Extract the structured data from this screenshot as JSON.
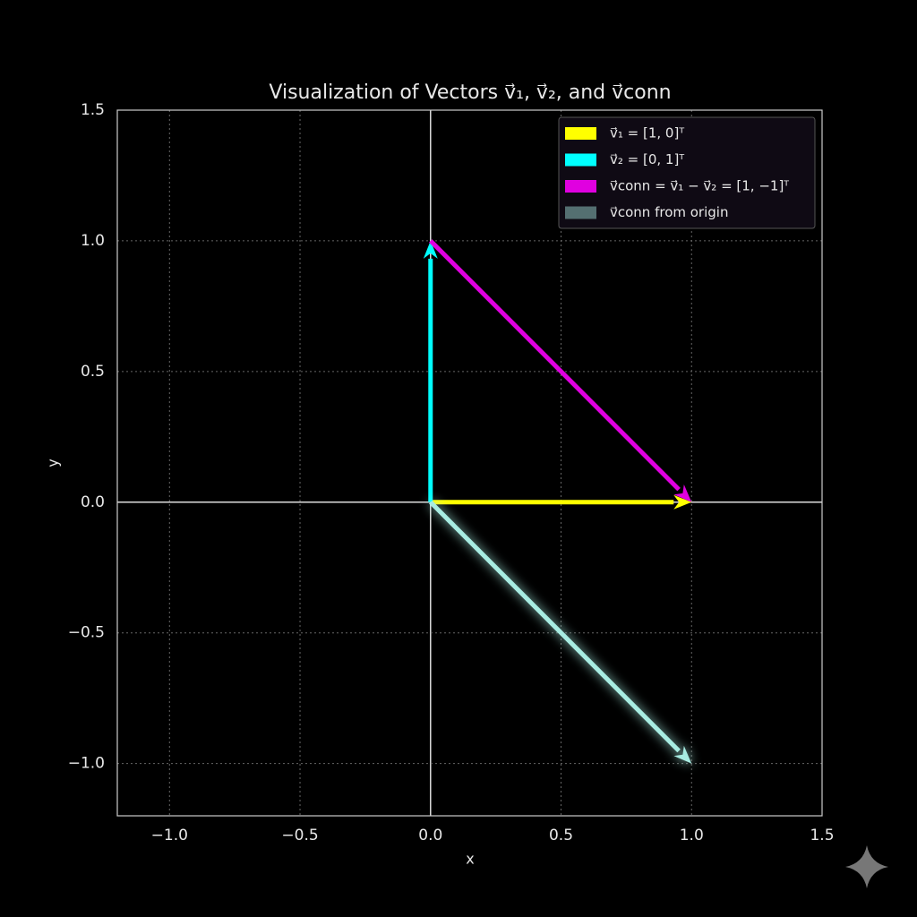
{
  "chart_data": {
    "type": "vector",
    "title": "Visualization of Vectors v⃗₁, v⃗₂, and v⃗conn",
    "x_label": "x",
    "y_label": "y",
    "xlim": [
      -1.2,
      1.5
    ],
    "ylim": [
      -1.2,
      1.5
    ],
    "xticks": [
      {
        "value": -1.0,
        "label": "−1.0"
      },
      {
        "value": -0.5,
        "label": "−0.5"
      },
      {
        "value": 0,
        "label": "0.0"
      },
      0.5,
      {
        "value": 1.0,
        "label": "1.0"
      },
      1.5
    ],
    "yticks": [
      {
        "value": -1.0,
        "label": "−1.0"
      },
      {
        "value": -0.5,
        "label": "−0.5"
      },
      {
        "value": 0,
        "label": "0.0"
      },
      0.5,
      {
        "value": 1.0,
        "label": "1.0"
      },
      1.5
    ],
    "grid": true,
    "legend": "upper right",
    "series": [
      {
        "name": "v⃗₁ = [1, 0]ᵀ",
        "color": "#ffff00",
        "x": [
          0,
          1
        ],
        "y": [
          0,
          0
        ]
      },
      {
        "name": "v⃗₂ = [0, 1]ᵀ",
        "color": "#00ffff",
        "x": [
          0,
          0
        ],
        "y": [
          0,
          1
        ]
      },
      {
        "name": "v⃗conn = v⃗₁ − v⃗₂ = [1, −1]ᵀ",
        "color": "#e000e0",
        "x": [
          0,
          1
        ],
        "y": [
          1,
          0
        ]
      },
      {
        "name": "v⃗conn from origin",
        "color": "#a8ece2",
        "x": [
          0,
          1
        ],
        "y": [
          0,
          -1
        ],
        "glow": true
      }
    ]
  }
}
